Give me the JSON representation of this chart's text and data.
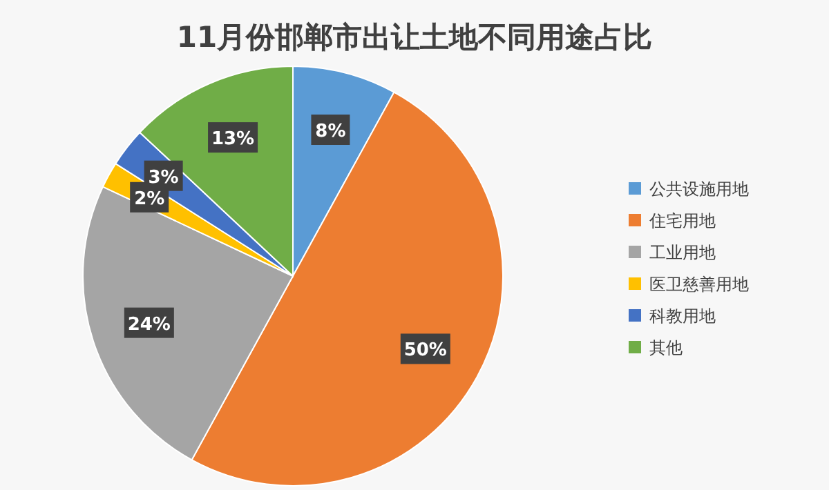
{
  "chart_data": {
    "type": "pie",
    "title": "11月份邯郸市出让土地不同用途占比",
    "categories": [
      "公共设施用地",
      "住宅用地",
      "工业用地",
      "医卫慈善用地",
      "科教用地",
      "其他"
    ],
    "values": [
      8,
      50,
      24,
      2,
      3,
      13
    ],
    "colors": [
      "#5b9bd5",
      "#ed7d31",
      "#a5a5a5",
      "#ffc000",
      "#4472c4",
      "#70ad47"
    ],
    "value_labels": [
      "8%",
      "50%",
      "24%",
      "2%",
      "3%",
      "13%"
    ],
    "legend": "right"
  }
}
